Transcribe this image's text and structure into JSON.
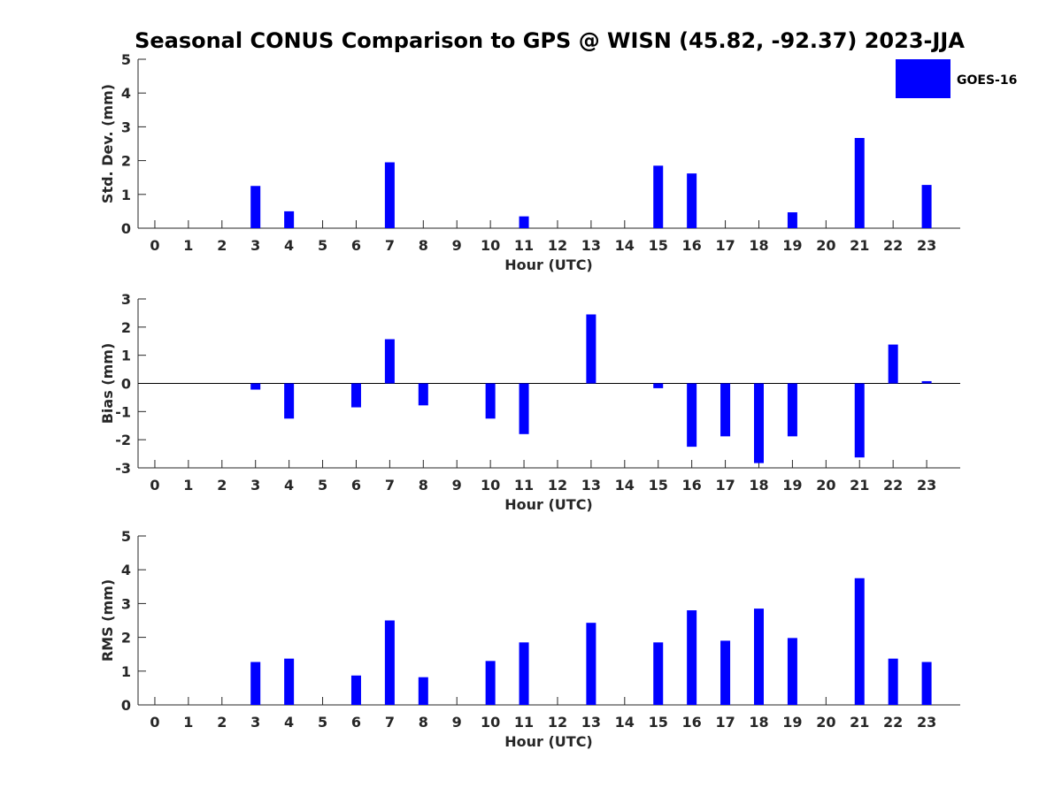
{
  "title": "Seasonal CONUS Comparison to GPS @ WISN (45.82, -92.37) 2023-JJA",
  "legend": {
    "label": "GOES-16",
    "placement": "top-right",
    "color": "#0000ff"
  },
  "bar_color": "#0000ff",
  "chart_data": [
    {
      "type": "bar",
      "name": "stddev",
      "xlabel": "Hour (UTC)",
      "ylabel": "Std. Dev. (mm)",
      "ylim": [
        0,
        5
      ],
      "yticks": [
        0,
        1,
        2,
        3,
        4,
        5
      ],
      "categories": [
        "0",
        "1",
        "2",
        "3",
        "4",
        "5",
        "6",
        "7",
        "8",
        "9",
        "10",
        "11",
        "12",
        "13",
        "14",
        "15",
        "16",
        "17",
        "18",
        "19",
        "20",
        "21",
        "22",
        "23"
      ],
      "values": [
        null,
        null,
        null,
        1.25,
        0.5,
        null,
        null,
        1.95,
        null,
        null,
        null,
        0.35,
        null,
        null,
        null,
        1.85,
        1.62,
        null,
        null,
        0.47,
        null,
        2.67,
        null,
        1.28
      ]
    },
    {
      "type": "bar",
      "name": "bias",
      "xlabel": "Hour (UTC)",
      "ylabel": "Bias (mm)",
      "ylim": [
        -3,
        3
      ],
      "yticks": [
        -3,
        -2,
        -1,
        0,
        1,
        2,
        3
      ],
      "categories": [
        "0",
        "1",
        "2",
        "3",
        "4",
        "5",
        "6",
        "7",
        "8",
        "9",
        "10",
        "11",
        "12",
        "13",
        "14",
        "15",
        "16",
        "17",
        "18",
        "19",
        "20",
        "21",
        "22",
        "23"
      ],
      "values": [
        0,
        0,
        0,
        -0.22,
        -1.25,
        0,
        -0.85,
        1.57,
        -0.78,
        0,
        -1.25,
        -1.8,
        0,
        2.45,
        0,
        -0.17,
        -2.25,
        -1.88,
        -2.83,
        -1.88,
        0,
        -2.63,
        1.38,
        0.08
      ]
    },
    {
      "type": "bar",
      "name": "rms",
      "xlabel": "Hour (UTC)",
      "ylabel": "RMS (mm)",
      "ylim": [
        0,
        5
      ],
      "yticks": [
        0,
        1,
        2,
        3,
        4,
        5
      ],
      "categories": [
        "0",
        "1",
        "2",
        "3",
        "4",
        "5",
        "6",
        "7",
        "8",
        "9",
        "10",
        "11",
        "12",
        "13",
        "14",
        "15",
        "16",
        "17",
        "18",
        "19",
        "20",
        "21",
        "22",
        "23"
      ],
      "values": [
        null,
        null,
        null,
        1.27,
        1.37,
        null,
        0.87,
        2.5,
        0.82,
        null,
        1.3,
        1.85,
        null,
        2.43,
        null,
        1.85,
        2.8,
        1.9,
        2.85,
        1.98,
        null,
        3.75,
        1.37,
        1.27
      ]
    }
  ]
}
